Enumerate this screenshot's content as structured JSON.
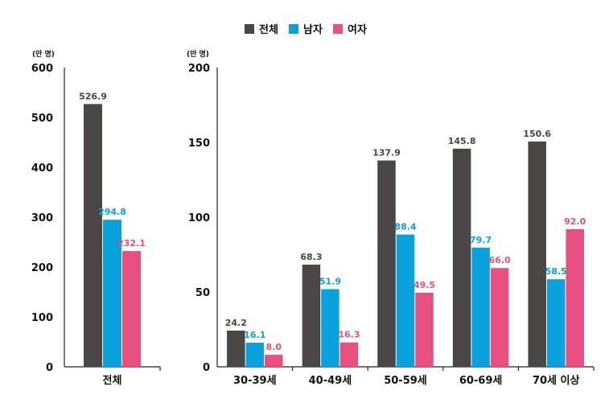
{
  "legend": [
    {
      "name": "전체",
      "color": "#4a4646"
    },
    {
      "name": "남자",
      "color": "#0aa2dd"
    },
    {
      "name": "여자",
      "color": "#e8507f"
    }
  ],
  "chart_data": [
    {
      "type": "bar",
      "unit_label": "(만 명)",
      "ylim": [
        0,
        600
      ],
      "yticks": [
        0,
        100,
        200,
        300,
        400,
        500,
        600
      ],
      "categories": [
        "전체"
      ],
      "series": [
        {
          "name": "전체",
          "values": [
            526.9
          ]
        },
        {
          "name": "남자",
          "values": [
            294.8
          ]
        },
        {
          "name": "여자",
          "values": [
            232.1
          ]
        }
      ],
      "value_labels": [
        [
          "526.9"
        ],
        [
          "294.8"
        ],
        [
          "232.1"
        ]
      ]
    },
    {
      "type": "bar",
      "unit_label": "(만 명)",
      "ylim": [
        0,
        200
      ],
      "yticks": [
        0,
        50,
        100,
        150,
        200
      ],
      "categories": [
        "30-39세",
        "40-49세",
        "50-59세",
        "60-69세",
        "70세 이상"
      ],
      "series": [
        {
          "name": "전체",
          "values": [
            24.2,
            68.3,
            137.9,
            145.8,
            150.6
          ]
        },
        {
          "name": "남자",
          "values": [
            16.1,
            51.9,
            88.4,
            79.7,
            58.5
          ]
        },
        {
          "name": "여자",
          "values": [
            8.0,
            16.3,
            49.5,
            66.0,
            92.0
          ]
        }
      ],
      "value_labels": [
        [
          "24.2",
          "68.3",
          "137.9",
          "145.8",
          "150.6"
        ],
        [
          "16.1",
          "51.9",
          "88.4",
          "79.7",
          "58.5"
        ],
        [
          "8.0",
          "16.3",
          "49.5",
          "66.0",
          "92.0"
        ]
      ]
    }
  ]
}
